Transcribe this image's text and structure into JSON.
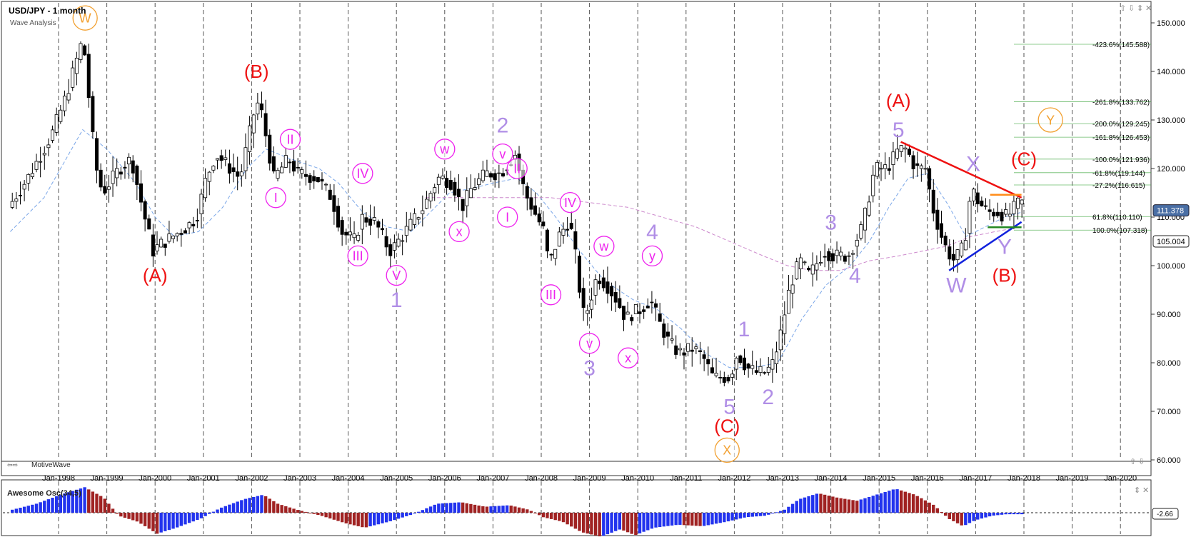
{
  "header": {
    "title": "USD/JPY - 1 month",
    "subtitle": "Wave Analysis",
    "brand": "MotiveWave",
    "window_controls": [
      "⇧",
      "⇩",
      "⇕",
      "✕"
    ],
    "nav_arrows": [
      "⇧",
      "⇩"
    ]
  },
  "osc": {
    "label": "Awesome Osc(34,5)",
    "value_label": "-2.66",
    "controls": [
      "⇕",
      "✕"
    ]
  },
  "colors": {
    "up_candle": "#ffffff",
    "down_candle": "#000000",
    "label_purple": "#b08ee6",
    "label_magenta": "#ee22ee",
    "label_red": "#ee1111",
    "label_orange": "#f2a030",
    "osc_up": "#2233ee",
    "osc_down": "#a02222",
    "trend_red": "#ee1111",
    "trend_blue": "#1122dd",
    "fib_green": "#44aa44"
  },
  "chart_data": {
    "type": "candlestick",
    "symbol": "USD/JPY",
    "timeframe": "1 month",
    "ylim": [
      58,
      154
    ],
    "xlim": [
      1997.0,
      2020.9
    ],
    "y_ticks": [
      60,
      70,
      80,
      90,
      100,
      110,
      120,
      130,
      140,
      150
    ],
    "y_tick_labels": [
      "60.000",
      "70.000",
      "80.000",
      "90.000",
      "100.000",
      "110.000",
      "120.000",
      "130.000",
      "140.000",
      "150.000"
    ],
    "x_ticks": [
      "Jan-1998",
      "Jan-1999",
      "Jan-2000",
      "Jan-2001",
      "Jan-2002",
      "Jan-2003",
      "Jan-2004",
      "Jan-2005",
      "Jan-2006",
      "Jan-2007",
      "Jan-2008",
      "Jan-2009",
      "Jan-2010",
      "Jan-2011",
      "Jan-2012",
      "Jan-2013",
      "Jan-2014",
      "Jan-2015",
      "Jan-2016",
      "Jan-2017",
      "Jan-2018",
      "Jan-2019",
      "Jan-2020"
    ],
    "x_tick_years": [
      1998,
      1999,
      2000,
      2001,
      2002,
      2003,
      2004,
      2005,
      2006,
      2007,
      2008,
      2009,
      2010,
      2011,
      2012,
      2013,
      2014,
      2015,
      2016,
      2017,
      2018,
      2019,
      2020
    ],
    "price_path": [
      [
        1997.0,
        112
      ],
      [
        1997.4,
        118
      ],
      [
        1997.9,
        127
      ],
      [
        1998.2,
        135
      ],
      [
        1998.55,
        147
      ],
      [
        1998.8,
        121
      ],
      [
        1998.95,
        115
      ],
      [
        1999.3,
        120
      ],
      [
        1999.55,
        122
      ],
      [
        1999.8,
        111
      ],
      [
        2000.0,
        103
      ],
      [
        2000.1,
        104
      ],
      [
        2000.4,
        106
      ],
      [
        2000.7,
        108
      ],
      [
        2000.9,
        110
      ],
      [
        2001.1,
        118
      ],
      [
        2001.3,
        123
      ],
      [
        2001.5,
        121
      ],
      [
        2001.8,
        118
      ],
      [
        2002.1,
        132
      ],
      [
        2002.2,
        134
      ],
      [
        2002.5,
        118
      ],
      [
        2002.8,
        122
      ],
      [
        2003.0,
        119
      ],
      [
        2003.4,
        118
      ],
      [
        2003.7,
        114
      ],
      [
        2003.9,
        107
      ],
      [
        2004.2,
        105
      ],
      [
        2004.3,
        110
      ],
      [
        2004.6,
        109
      ],
      [
        2004.9,
        103
      ],
      [
        2005.0,
        104
      ],
      [
        2005.3,
        108
      ],
      [
        2005.6,
        112
      ],
      [
        2005.9,
        118
      ],
      [
        2006.0,
        118
      ],
      [
        2006.2,
        117
      ],
      [
        2006.4,
        112
      ],
      [
        2006.6,
        116
      ],
      [
        2006.9,
        119
      ],
      [
        2007.2,
        119
      ],
      [
        2007.5,
        123
      ],
      [
        2007.7,
        115
      ],
      [
        2007.9,
        111
      ],
      [
        2008.1,
        107
      ],
      [
        2008.2,
        100
      ],
      [
        2008.4,
        106
      ],
      [
        2008.6,
        109
      ],
      [
        2008.7,
        106
      ],
      [
        2008.9,
        90
      ],
      [
        2009.0,
        91
      ],
      [
        2009.2,
        98
      ],
      [
        2009.4,
        96
      ],
      [
        2009.6,
        93
      ],
      [
        2009.8,
        89
      ],
      [
        2009.9,
        90
      ],
      [
        2010.1,
        91
      ],
      [
        2010.3,
        93
      ],
      [
        2010.5,
        88
      ],
      [
        2010.7,
        84
      ],
      [
        2010.9,
        82
      ],
      [
        2011.2,
        83
      ],
      [
        2011.4,
        81
      ],
      [
        2011.6,
        77
      ],
      [
        2011.8,
        77
      ],
      [
        2011.95,
        77
      ],
      [
        2012.1,
        82
      ],
      [
        2012.3,
        79
      ],
      [
        2012.5,
        78
      ],
      [
        2012.7,
        78
      ],
      [
        2012.85,
        80
      ],
      [
        2013.0,
        86
      ],
      [
        2013.2,
        96
      ],
      [
        2013.4,
        101
      ],
      [
        2013.6,
        98
      ],
      [
        2013.9,
        103
      ],
      [
        2014.1,
        102
      ],
      [
        2014.4,
        102
      ],
      [
        2014.7,
        108
      ],
      [
        2014.95,
        120
      ],
      [
        2015.2,
        120
      ],
      [
        2015.45,
        124
      ],
      [
        2015.6,
        124
      ],
      [
        2015.8,
        120
      ],
      [
        2016.0,
        120
      ],
      [
        2016.15,
        112
      ],
      [
        2016.3,
        107
      ],
      [
        2016.45,
        103
      ],
      [
        2016.6,
        101
      ],
      [
        2016.8,
        104
      ],
      [
        2016.95,
        116
      ],
      [
        2017.1,
        113
      ],
      [
        2017.3,
        111
      ],
      [
        2017.5,
        111
      ],
      [
        2017.7,
        110
      ],
      [
        2017.85,
        112
      ],
      [
        2017.95,
        113
      ]
    ],
    "ma_fast_path": [
      [
        1997.0,
        107
      ],
      [
        1997.7,
        114
      ],
      [
        1998.5,
        128
      ],
      [
        1999.0,
        124
      ],
      [
        1999.6,
        117
      ],
      [
        2000.0,
        110
      ],
      [
        2000.4,
        106
      ],
      [
        2000.9,
        107
      ],
      [
        2001.4,
        112
      ],
      [
        2001.9,
        120
      ],
      [
        2002.3,
        124
      ],
      [
        2002.8,
        122
      ],
      [
        2003.4,
        120
      ],
      [
        2003.8,
        117
      ],
      [
        2004.3,
        111
      ],
      [
        2004.8,
        108
      ],
      [
        2005.3,
        107
      ],
      [
        2005.7,
        111
      ],
      [
        2006.1,
        115
      ],
      [
        2006.6,
        116
      ],
      [
        2007.0,
        117
      ],
      [
        2007.5,
        118
      ],
      [
        2007.9,
        115
      ],
      [
        2008.3,
        110
      ],
      [
        2008.8,
        103
      ],
      [
        2009.3,
        97
      ],
      [
        2009.9,
        93
      ],
      [
        2010.4,
        91
      ],
      [
        2010.9,
        87
      ],
      [
        2011.4,
        82
      ],
      [
        2011.9,
        79
      ],
      [
        2012.4,
        79
      ],
      [
        2012.9,
        80
      ],
      [
        2013.4,
        89
      ],
      [
        2013.9,
        96
      ],
      [
        2014.4,
        100
      ],
      [
        2014.8,
        105
      ],
      [
        2015.2,
        112
      ],
      [
        2015.6,
        118
      ],
      [
        2016.0,
        119
      ],
      [
        2016.4,
        113
      ],
      [
        2016.8,
        106
      ],
      [
        2017.2,
        108
      ],
      [
        2017.6,
        110
      ],
      [
        2017.95,
        111
      ]
    ],
    "ma_slow_path": [
      [
        2005.6,
        114
      ],
      [
        2006.2,
        114
      ],
      [
        2006.9,
        114
      ],
      [
        2007.5,
        114
      ],
      [
        2008.2,
        114
      ],
      [
        2009.0,
        113
      ],
      [
        2009.8,
        112
      ],
      [
        2010.5,
        110
      ],
      [
        2011.2,
        108
      ],
      [
        2011.9,
        105
      ],
      [
        2012.6,
        102
      ],
      [
        2013.1,
        100
      ],
      [
        2013.6,
        99
      ],
      [
        2014.2,
        99
      ],
      [
        2014.8,
        101
      ],
      [
        2015.4,
        102
      ],
      [
        2015.9,
        103
      ],
      [
        2016.4,
        104
      ],
      [
        2016.9,
        106
      ],
      [
        2017.4,
        107
      ],
      [
        2017.95,
        108
      ]
    ],
    "current_price": 111.378,
    "price_marker": 105.004,
    "fib_levels": [
      {
        "label": "-423.6%(145.588)",
        "value": 145.588
      },
      {
        "label": "-261.8%(133.762)",
        "value": 133.762
      },
      {
        "label": "-200.0%(129.245)",
        "value": 129.245
      },
      {
        "label": "-161.8%(126.453)",
        "value": 126.453
      },
      {
        "label": "-100.0%(121.936)",
        "value": 121.936
      },
      {
        "label": "-61.8%(119.144)",
        "value": 119.144
      },
      {
        "label": "-27.2%(116.615)",
        "value": 116.615
      },
      {
        "label": "61.8%(110.110)",
        "value": 110.11
      },
      {
        "label": "100.0%(107.318)",
        "value": 107.318
      }
    ],
    "trendlines": [
      {
        "name": "red-resistance",
        "color": "#ee1111",
        "from": [
          2015.45,
          125.5
        ],
        "to": [
          2017.95,
          114.0
        ]
      },
      {
        "name": "blue-support",
        "color": "#1122dd",
        "from": [
          2016.45,
          99.0
        ],
        "to": [
          2017.95,
          109.0
        ]
      },
      {
        "name": "orange-level",
        "color": "#ff8c1a",
        "from": [
          2017.3,
          114.6
        ],
        "to": [
          2017.95,
          114.6
        ]
      },
      {
        "name": "green-level",
        "color": "#228822",
        "from": [
          2017.25,
          107.9
        ],
        "to": [
          2017.95,
          107.9
        ]
      }
    ],
    "wave_labels": [
      {
        "text": "W",
        "x": 1998.55,
        "y": 151,
        "color": "#f2a030",
        "style": "circle"
      },
      {
        "text": "(A)",
        "x": 2000.0,
        "y": 98,
        "color": "#ee1111",
        "style": "plain"
      },
      {
        "text": "(B)",
        "x": 2002.1,
        "y": 140,
        "color": "#ee1111",
        "style": "plain"
      },
      {
        "text": "II",
        "x": 2002.8,
        "y": 126,
        "color": "#ee22ee",
        "style": "circle"
      },
      {
        "text": "I",
        "x": 2002.5,
        "y": 114,
        "color": "#ee22ee",
        "style": "circle"
      },
      {
        "text": "IV",
        "x": 2004.3,
        "y": 119,
        "color": "#ee22ee",
        "style": "circle"
      },
      {
        "text": "III",
        "x": 2004.2,
        "y": 102,
        "color": "#ee22ee",
        "style": "circle"
      },
      {
        "text": "V",
        "x": 2005.0,
        "y": 98,
        "color": "#ee22ee",
        "style": "circle"
      },
      {
        "text": "1",
        "x": 2005.0,
        "y": 93,
        "color": "#b08ee6",
        "style": "plain"
      },
      {
        "text": "w",
        "x": 2006.0,
        "y": 124,
        "color": "#ee22ee",
        "style": "circle"
      },
      {
        "text": "x",
        "x": 2006.3,
        "y": 107,
        "color": "#ee22ee",
        "style": "circle"
      },
      {
        "text": "2",
        "x": 2007.2,
        "y": 129,
        "color": "#b08ee6",
        "style": "plain"
      },
      {
        "text": "v",
        "x": 2007.2,
        "y": 123,
        "color": "#ee22ee",
        "style": "circle"
      },
      {
        "text": "II",
        "x": 2007.5,
        "y": 120,
        "color": "#ee22ee",
        "style": "circle"
      },
      {
        "text": "I",
        "x": 2007.3,
        "y": 110,
        "color": "#ee22ee",
        "style": "circle"
      },
      {
        "text": "IV",
        "x": 2008.6,
        "y": 113,
        "color": "#ee22ee",
        "style": "circle"
      },
      {
        "text": "III",
        "x": 2008.2,
        "y": 94,
        "color": "#ee22ee",
        "style": "circle"
      },
      {
        "text": "w",
        "x": 2009.3,
        "y": 104,
        "color": "#ee22ee",
        "style": "circle"
      },
      {
        "text": "4",
        "x": 2010.3,
        "y": 107,
        "color": "#b08ee6",
        "style": "plain"
      },
      {
        "text": "y",
        "x": 2010.3,
        "y": 102,
        "color": "#ee22ee",
        "style": "circle"
      },
      {
        "text": "v",
        "x": 2009.0,
        "y": 84,
        "color": "#ee22ee",
        "style": "circle"
      },
      {
        "text": "3",
        "x": 2009.0,
        "y": 79,
        "color": "#b08ee6",
        "style": "plain"
      },
      {
        "text": "x",
        "x": 2009.8,
        "y": 81,
        "color": "#ee22ee",
        "style": "circle"
      },
      {
        "text": "1",
        "x": 2012.2,
        "y": 87,
        "color": "#b08ee6",
        "style": "plain"
      },
      {
        "text": "5",
        "x": 2011.9,
        "y": 71,
        "color": "#b08ee6",
        "style": "plain"
      },
      {
        "text": "2",
        "x": 2012.7,
        "y": 73,
        "color": "#b08ee6",
        "style": "plain"
      },
      {
        "text": "(C)",
        "x": 2011.85,
        "y": 67,
        "color": "#ee1111",
        "style": "plain"
      },
      {
        "text": "X",
        "x": 2011.85,
        "y": 62,
        "color": "#f2a030",
        "style": "circle"
      },
      {
        "text": "3",
        "x": 2014.0,
        "y": 109,
        "color": "#b08ee6",
        "style": "plain"
      },
      {
        "text": "4",
        "x": 2014.5,
        "y": 98,
        "color": "#b08ee6",
        "style": "plain"
      },
      {
        "text": "(A)",
        "x": 2015.4,
        "y": 134,
        "color": "#ee1111",
        "style": "plain"
      },
      {
        "text": "5",
        "x": 2015.4,
        "y": 128,
        "color": "#b08ee6",
        "style": "plain"
      },
      {
        "text": "X",
        "x": 2016.95,
        "y": 121,
        "color": "#b08ee6",
        "style": "plain"
      },
      {
        "text": "(C)",
        "x": 2018.0,
        "y": 122,
        "color": "#ee1111",
        "style": "plain"
      },
      {
        "text": "Y",
        "x": 2018.55,
        "y": 130,
        "color": "#f2a030",
        "style": "circle"
      },
      {
        "text": "W",
        "x": 2016.6,
        "y": 96,
        "color": "#b08ee6",
        "style": "plain"
      },
      {
        "text": "Y",
        "x": 2017.6,
        "y": 104,
        "color": "#b08ee6",
        "style": "plain"
      },
      {
        "text": "(B)",
        "x": 2017.6,
        "y": 98,
        "color": "#ee1111",
        "style": "plain"
      }
    ],
    "osc_path": [
      [
        1997.0,
        2
      ],
      [
        1997.5,
        6
      ],
      [
        1998.0,
        12
      ],
      [
        1998.5,
        17
      ],
      [
        1998.9,
        10
      ],
      [
        1999.2,
        -2
      ],
      [
        1999.6,
        -6
      ],
      [
        2000.0,
        -14
      ],
      [
        2000.4,
        -10
      ],
      [
        2000.9,
        -4
      ],
      [
        2001.3,
        3
      ],
      [
        2001.8,
        9
      ],
      [
        2002.2,
        12
      ],
      [
        2002.5,
        6
      ],
      [
        2002.9,
        2
      ],
      [
        2003.4,
        -2
      ],
      [
        2003.9,
        -7
      ],
      [
        2004.3,
        -10
      ],
      [
        2004.8,
        -6
      ],
      [
        2005.3,
        -1
      ],
      [
        2005.8,
        6
      ],
      [
        2006.3,
        7
      ],
      [
        2006.8,
        4
      ],
      [
        2007.3,
        5
      ],
      [
        2007.7,
        2
      ],
      [
        2008.0,
        -3
      ],
      [
        2008.4,
        -6
      ],
      [
        2008.8,
        -13
      ],
      [
        2009.2,
        -16
      ],
      [
        2009.6,
        -11
      ],
      [
        2009.9,
        -15
      ],
      [
        2010.3,
        -10
      ],
      [
        2010.8,
        -8
      ],
      [
        2011.3,
        -9
      ],
      [
        2011.8,
        -6
      ],
      [
        2012.2,
        -3
      ],
      [
        2012.6,
        -2
      ],
      [
        2013.0,
        2
      ],
      [
        2013.3,
        9
      ],
      [
        2013.7,
        13
      ],
      [
        2014.1,
        10
      ],
      [
        2014.5,
        8
      ],
      [
        2014.9,
        12
      ],
      [
        2015.3,
        16
      ],
      [
        2015.7,
        12
      ],
      [
        2016.1,
        5
      ],
      [
        2016.4,
        -4
      ],
      [
        2016.7,
        -9
      ],
      [
        2016.95,
        -5
      ],
      [
        2017.3,
        -2
      ],
      [
        2017.6,
        -1
      ],
      [
        2017.95,
        -1
      ]
    ]
  }
}
